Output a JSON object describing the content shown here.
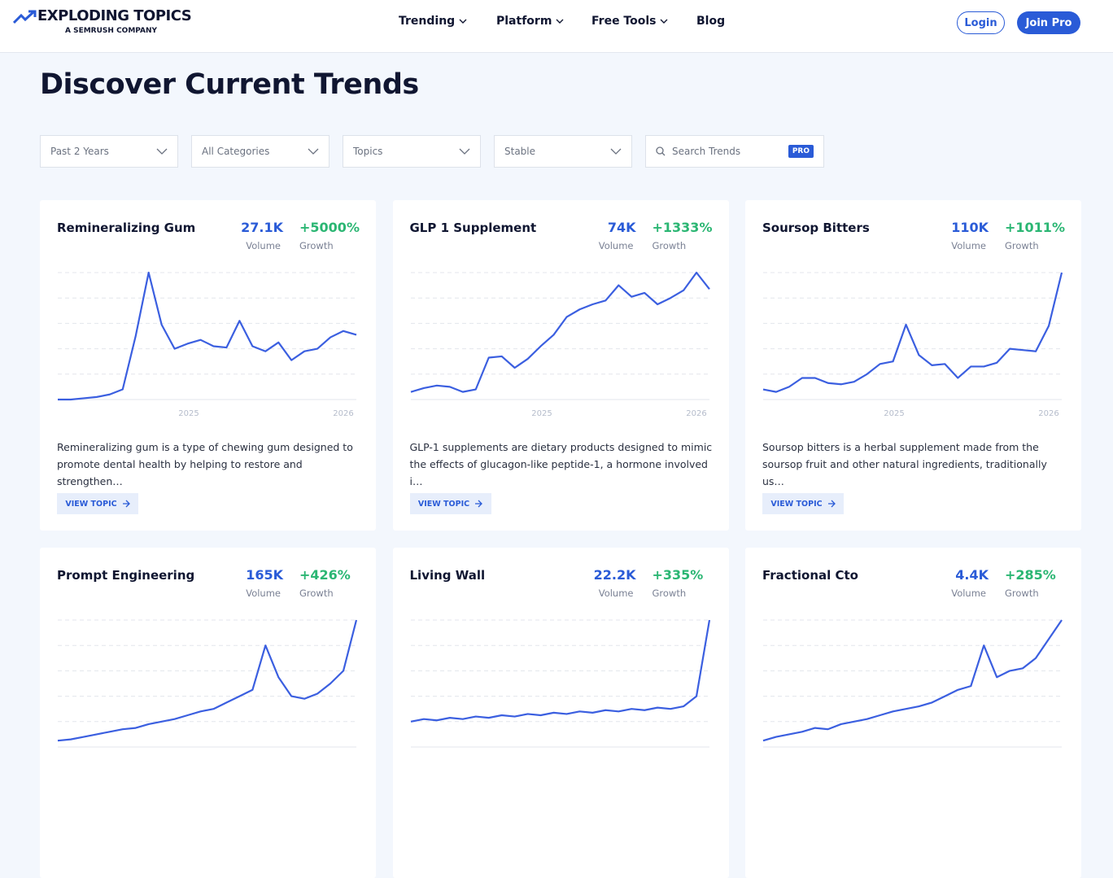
{
  "header": {
    "logo": "EXPLODING TOPICS",
    "logo_sub": "A SEMRUSH COMPANY",
    "nav": [
      "Trending",
      "Platform",
      "Free Tools",
      "Blog"
    ],
    "login": "Login",
    "join": "Join Pro"
  },
  "page": {
    "title": "Discover Current Trends"
  },
  "filters": [
    "Past 2 Years",
    "All Categories",
    "Topics",
    "Stable"
  ],
  "search": {
    "placeholder": "Search Trends",
    "badge": "PRO"
  },
  "cards": [
    {
      "title": "Remineralizing Gum",
      "volume": "27.1K",
      "volume_label": "Volume",
      "growth": "+5000%",
      "growth_label": "Growth",
      "years": [
        "2025",
        "2026"
      ],
      "values": [
        0,
        0,
        1,
        2,
        4,
        8,
        50,
        100,
        59,
        40,
        44,
        47,
        42,
        41,
        62,
        42,
        38,
        45,
        31,
        38,
        40,
        49,
        54,
        51
      ],
      "description": "Remineralizing gum is a type of chewing gum designed to promote dental health by helping to restore and strengthen…",
      "button": "VIEW TOPIC"
    },
    {
      "title": "GLP 1 Supplement",
      "volume": "74K",
      "volume_label": "Volume",
      "growth": "+1333%",
      "growth_label": "Growth",
      "years": [
        "2025",
        "2026"
      ],
      "values": [
        6,
        9,
        11,
        10,
        6,
        8,
        33,
        34,
        25,
        32,
        42,
        51,
        65,
        71,
        75,
        78,
        90,
        81,
        84,
        75,
        80,
        86,
        100,
        87
      ],
      "description": "GLP-1 supplements are dietary products designed to mimic the effects of glucagon-like peptide-1, a hormone involved i…",
      "button": "VIEW TOPIC"
    },
    {
      "title": "Soursop Bitters",
      "volume": "110K",
      "volume_label": "Volume",
      "growth": "+1011%",
      "growth_label": "Growth",
      "years": [
        "2025",
        "2026"
      ],
      "values": [
        8,
        6,
        10,
        17,
        17,
        13,
        12,
        14,
        20,
        28,
        30,
        59,
        35,
        27,
        28,
        17,
        26,
        26,
        29,
        40,
        39,
        38,
        58,
        100
      ],
      "description": "Soursop bitters is a herbal supplement made from the soursop fruit and other natural ingredients, traditionally us…",
      "button": "VIEW TOPIC"
    },
    {
      "title": "Prompt Engineering",
      "volume": "165K",
      "volume_label": "Volume",
      "growth": "+426%",
      "growth_label": "Growth",
      "values": [
        5,
        6,
        8,
        10,
        12,
        14,
        15,
        18,
        20,
        22,
        25,
        28,
        30,
        35,
        40,
        45,
        80,
        55,
        40,
        38,
        42,
        50,
        60,
        100
      ]
    },
    {
      "title": "Living Wall",
      "volume": "22.2K",
      "volume_label": "Volume",
      "growth": "+335%",
      "growth_label": "Growth",
      "values": [
        20,
        22,
        21,
        23,
        22,
        24,
        23,
        25,
        24,
        26,
        25,
        27,
        26,
        28,
        27,
        29,
        28,
        30,
        29,
        31,
        30,
        32,
        40,
        100
      ]
    },
    {
      "title": "Fractional Cto",
      "volume": "4.4K",
      "volume_label": "Volume",
      "growth": "+285%",
      "growth_label": "Growth",
      "values": [
        5,
        8,
        10,
        12,
        15,
        14,
        18,
        20,
        22,
        25,
        28,
        30,
        32,
        35,
        40,
        45,
        48,
        80,
        55,
        60,
        62,
        70,
        85,
        100
      ]
    }
  ]
}
